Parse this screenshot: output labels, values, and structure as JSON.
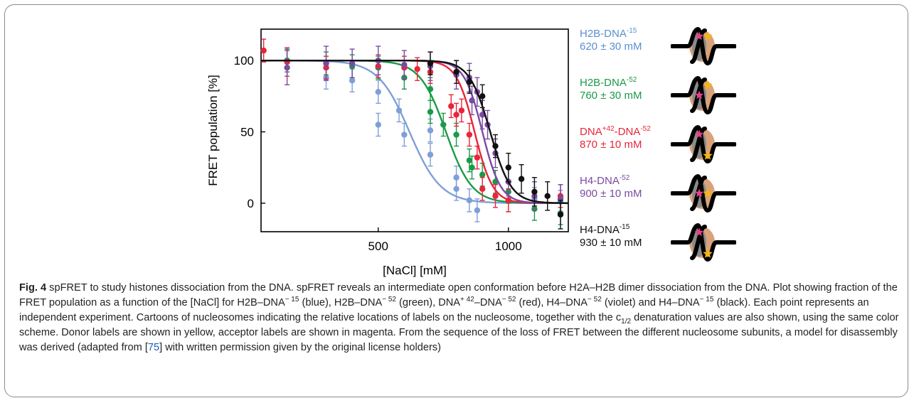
{
  "figure": {
    "label": "Fig. 4",
    "caption": {
      "lead": " spFRET to study histones dissociation from the DNA. spFRET reveals an intermediate open conformation before H2A–H2B dimer dissociation from the DNA. Plot showing fraction of the FRET population as a function of the [NaCl] for H2B–DNA",
      "s1": "− 15",
      "t1": " (blue), H2B–DNA",
      "s2": "− 52",
      "t2": " (green), DNA",
      "s3": "+ 42",
      "t3": "–DNA",
      "s4": "− 52",
      "t4": " (red), H4–DNA",
      "s5": "− 52",
      "t5": " (violet) and H4–DNA",
      "s6": "− 15",
      "t6": " (black). Each point represents an independent experiment. Cartoons of nucleosomes indicating the relative locations of labels on the nucleosome, together with the c",
      "sub1": "1/2",
      "t7": " denaturation values are also shown, using the same color scheme. Donor labels are shown in yellow, acceptor labels are shown in magenta. From the sequence of the loss of FRET between the different nucleosome subunits, a model for disassembly was derived (adapted from [",
      "ref": "75",
      "t8": "] with written permission given by the original license holders)"
    }
  },
  "legend": [
    {
      "name": "H2B-DNA",
      "sup": "-15",
      "value": "620 ± 30 mM",
      "color": "#5b8fd0",
      "donor_pos": "top",
      "acceptor_pos": "top"
    },
    {
      "name": "H2B-DNA",
      "sup": "-52",
      "value": "760 ± 30 mM",
      "color": "#1a9a48",
      "donor_pos": "top",
      "acceptor_pos": "mid"
    },
    {
      "name": "DNA",
      "sup": "+42",
      "name2": "-DNA",
      "sup2": "-52",
      "value": "870 ± 10 mM",
      "color": "#e8253a",
      "donor_pos": "bottom",
      "acceptor_pos": "top"
    },
    {
      "name": "H4-DNA",
      "sup": "-52",
      "value": "900 ± 10 mM",
      "color": "#7a4aa3",
      "donor_pos": "mid",
      "acceptor_pos": "mid"
    },
    {
      "name": "H4-DNA",
      "sup": "-15",
      "value": "930 ± 10 mM",
      "color": "#111111",
      "donor_pos": "bottom",
      "acceptor_pos": "top"
    }
  ],
  "chart_data": {
    "type": "scatter",
    "xlabel": "[NaCl] [mM]",
    "ylabel": "FRET population [%]",
    "xlim": [
      50,
      1230
    ],
    "ylim": [
      -20,
      122
    ],
    "xticks": [
      500,
      1000
    ],
    "yticks": [
      0,
      50,
      100
    ],
    "grid": false,
    "curve_model": "sigmoid",
    "series": [
      {
        "name": "H2B-DNA-15",
        "color": "#7f9fd6",
        "c_half": 620,
        "width": 60,
        "x": [
          150,
          300,
          400,
          500,
          500,
          580,
          600,
          700,
          700,
          800,
          800,
          850,
          880,
          1000,
          1100,
          1200
        ],
        "y": [
          100,
          88,
          86,
          55,
          78,
          65,
          48,
          51,
          34,
          18,
          10,
          2,
          -5,
          2,
          3,
          1
        ],
        "err": [
          8,
          8,
          8,
          8,
          8,
          8,
          8,
          8,
          8,
          8,
          8,
          8,
          8,
          8,
          8,
          8
        ]
      },
      {
        "name": "H2B-DNA-52",
        "color": "#1a9a48",
        "c_half": 760,
        "width": 50,
        "x": [
          150,
          300,
          400,
          500,
          600,
          700,
          700,
          750,
          800,
          850,
          860,
          900,
          950,
          1000,
          1100,
          1200
        ],
        "y": [
          100,
          98,
          96,
          95,
          88,
          80,
          64,
          55,
          48,
          30,
          25,
          20,
          15,
          8,
          -4,
          -7
        ],
        "err": [
          8,
          8,
          8,
          8,
          8,
          8,
          8,
          8,
          8,
          8,
          8,
          8,
          8,
          8,
          8,
          8
        ]
      },
      {
        "name": "DNA+42-DNA-52",
        "color": "#e8253a",
        "c_half": 870,
        "width": 35,
        "x": [
          60,
          150,
          300,
          500,
          600,
          650,
          700,
          780,
          800,
          820,
          850,
          880,
          900,
          950,
          1000,
          1200
        ],
        "y": [
          107,
          99,
          95,
          96,
          95,
          94,
          92,
          68,
          62,
          65,
          48,
          32,
          10,
          5,
          2,
          5
        ],
        "err": [
          8,
          10,
          8,
          8,
          8,
          8,
          8,
          8,
          8,
          8,
          8,
          8,
          8,
          8,
          8,
          8
        ]
      },
      {
        "name": "H4-DNA-52",
        "color": "#7a4aa3",
        "c_half": 900,
        "width": 35,
        "x": [
          150,
          300,
          400,
          500,
          600,
          700,
          800,
          850,
          860,
          880,
          900,
          920,
          950,
          1000,
          1100,
          1200
        ],
        "y": [
          95,
          98,
          98,
          100,
          97,
          96,
          90,
          88,
          72,
          78,
          62,
          55,
          35,
          15,
          5,
          3
        ],
        "err": [
          12,
          12,
          10,
          10,
          10,
          10,
          10,
          10,
          10,
          10,
          10,
          10,
          10,
          10,
          10,
          10
        ]
      },
      {
        "name": "H4-DNA-15",
        "color": "#111111",
        "c_half": 930,
        "width": 40,
        "x": [
          700,
          800,
          850,
          900,
          950,
          1000,
          1050,
          1100,
          1150,
          1200
        ],
        "y": [
          98,
          92,
          85,
          75,
          40,
          25,
          17,
          8,
          5,
          -8
        ],
        "err": [
          8,
          8,
          8,
          8,
          8,
          10,
          10,
          10,
          10,
          10
        ]
      }
    ]
  }
}
